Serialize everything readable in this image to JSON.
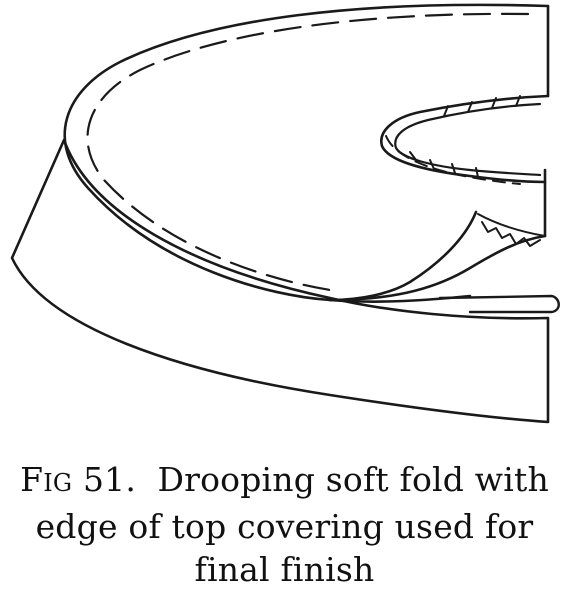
{
  "figure": {
    "caption": {
      "fig_letter": "F",
      "fig_rest": "IG",
      "fig_number": "51.",
      "line1_text": "Drooping soft fold with",
      "line2": "edge of top covering used for",
      "line3": "final finish"
    }
  }
}
